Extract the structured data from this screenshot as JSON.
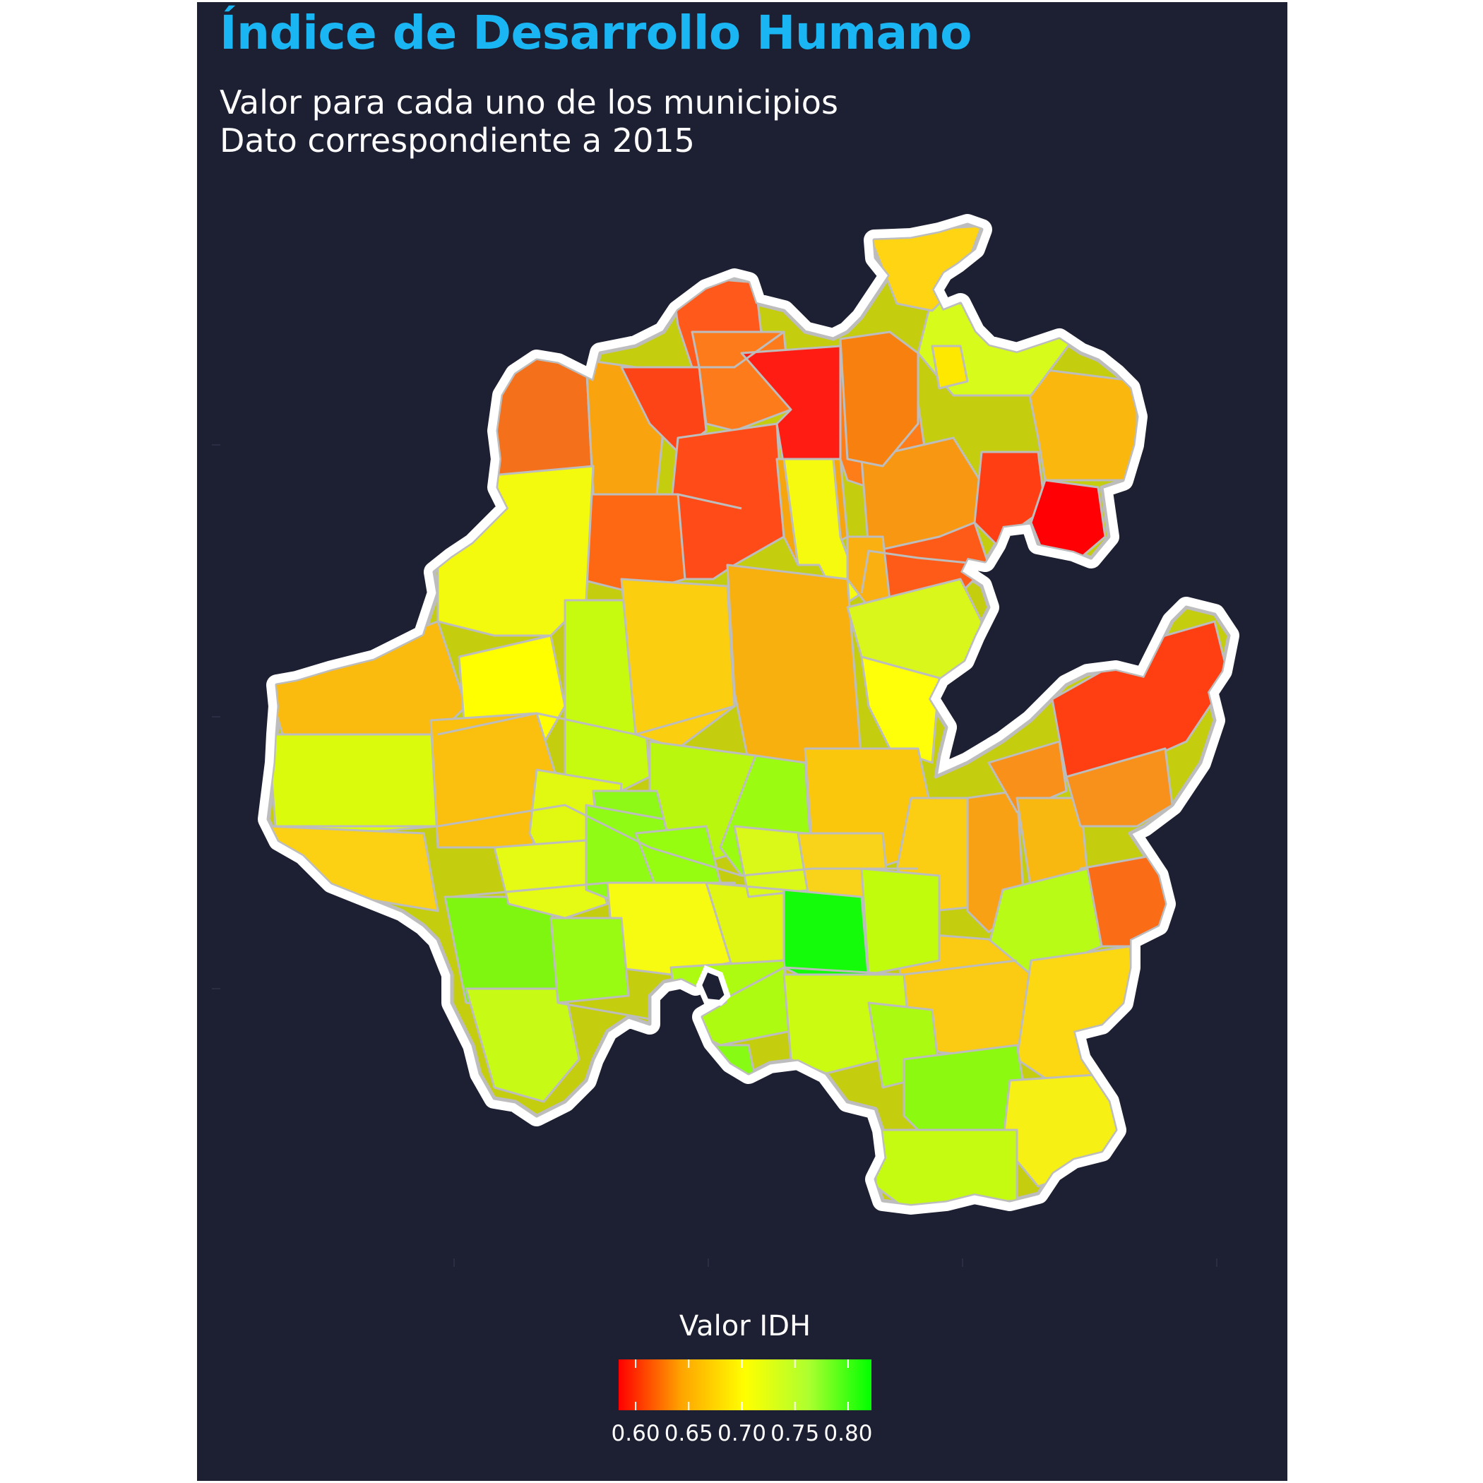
{
  "title": "Índice de Desarrollo Humano",
  "subtitle_line1": "Valor para cada uno de los municipios",
  "subtitle_line2": "Dato correspondiente a 2015",
  "legend": {
    "title": "Valor IDH",
    "ticks": [
      "0.60",
      "0.65",
      "0.70",
      "0.75",
      "0.80"
    ],
    "min": 0.584,
    "max": 0.822,
    "gradient": [
      "#ff0000",
      "#ffa500",
      "#ffff00",
      "#adff2f",
      "#00ff00"
    ]
  },
  "colors": {
    "background": "#1d1f32",
    "title": "#1ab6f4",
    "state_outline": "#ffffff",
    "municipio_border": "#bdbdbd"
  }
}
